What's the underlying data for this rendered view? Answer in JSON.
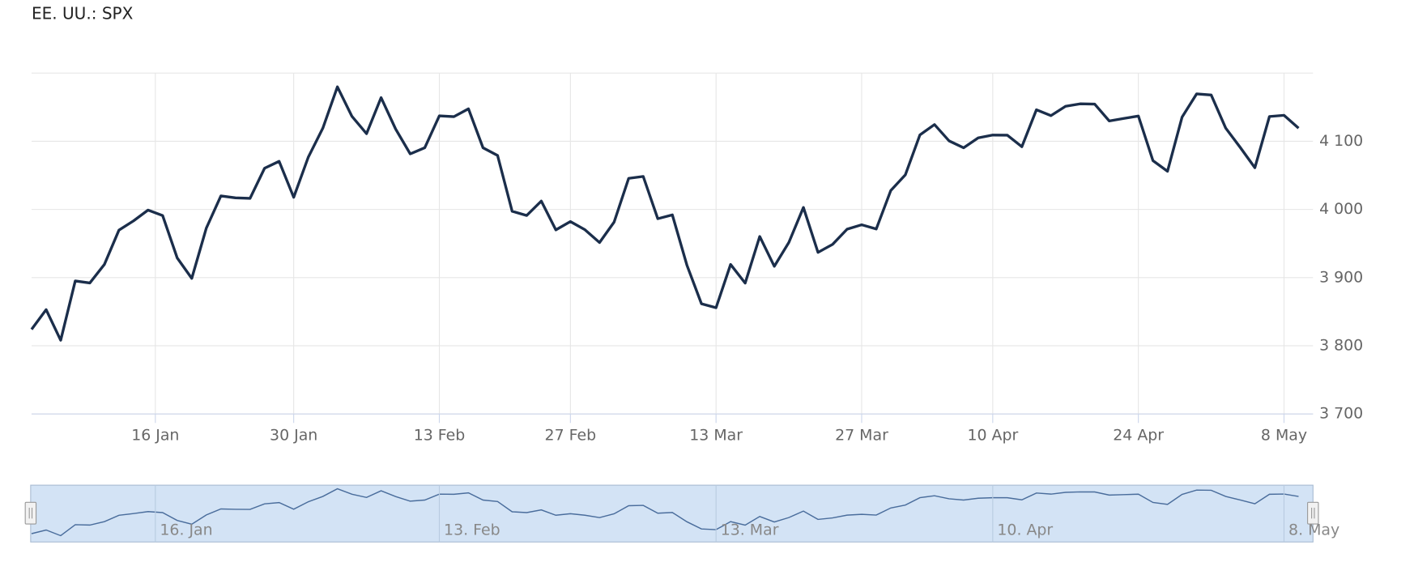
{
  "chart_data": {
    "type": "line",
    "title": "EE. UU.: SPX",
    "x": [
      "3 Jan",
      "4 Jan",
      "5 Jan",
      "6 Jan",
      "9 Jan",
      "10 Jan",
      "11 Jan",
      "12 Jan",
      "13 Jan",
      "17 Jan",
      "18 Jan",
      "19 Jan",
      "20 Jan",
      "23 Jan",
      "24 Jan",
      "25 Jan",
      "26 Jan",
      "27 Jan",
      "30 Jan",
      "31 Jan",
      "1 Feb",
      "2 Feb",
      "3 Feb",
      "6 Feb",
      "7 Feb",
      "8 Feb",
      "9 Feb",
      "10 Feb",
      "13 Feb",
      "14 Feb",
      "15 Feb",
      "16 Feb",
      "17 Feb",
      "21 Feb",
      "22 Feb",
      "23 Feb",
      "24 Feb",
      "27 Feb",
      "28 Feb",
      "1 Mar",
      "2 Mar",
      "3 Mar",
      "6 Mar",
      "7 Mar",
      "8 Mar",
      "9 Mar",
      "10 Mar",
      "13 Mar",
      "14 Mar",
      "15 Mar",
      "16 Mar",
      "17 Mar",
      "20 Mar",
      "21 Mar",
      "22 Mar",
      "23 Mar",
      "24 Mar",
      "27 Mar",
      "28 Mar",
      "29 Mar",
      "30 Mar",
      "31 Mar",
      "3 Apr",
      "4 Apr",
      "5 Apr",
      "6 Apr",
      "10 Apr",
      "11 Apr",
      "12 Apr",
      "13 Apr",
      "14 Apr",
      "17 Apr",
      "18 Apr",
      "19 Apr",
      "20 Apr",
      "21 Apr",
      "24 Apr",
      "25 Apr",
      "26 Apr",
      "27 Apr",
      "28 Apr",
      "1 May",
      "2 May",
      "3 May",
      "4 May",
      "5 May",
      "8 May",
      "9 May"
    ],
    "values": [
      3824.1,
      3853.0,
      3808.1,
      3895.1,
      3892.1,
      3919.3,
      3969.6,
      3983.2,
      3999.1,
      3991.0,
      3928.9,
      3898.9,
      3972.6,
      4019.8,
      4017.0,
      4016.2,
      4060.4,
      4070.6,
      4017.8,
      4076.6,
      4119.2,
      4179.8,
      4136.5,
      4111.1,
      4164.0,
      4117.9,
      4081.5,
      4090.5,
      4137.3,
      4136.1,
      4147.6,
      4090.4,
      4079.1,
      3997.3,
      3991.1,
      4012.3,
      3970.0,
      3982.2,
      3970.2,
      3951.4,
      3981.4,
      4045.6,
      4048.4,
      3986.4,
      3992.0,
      3918.3,
      3861.6,
      3855.8,
      3919.3,
      3891.9,
      3960.3,
      3916.6,
      3951.6,
      4002.9,
      3937.0,
      3948.7,
      3971.0,
      3977.5,
      3971.3,
      4027.8,
      4050.8,
      4109.3,
      4124.5,
      4100.6,
      4090.4,
      4105.0,
      4109.1,
      4108.9,
      4092.0,
      4146.2,
      4137.6,
      4151.3,
      4154.9,
      4154.5,
      4129.8,
      4133.5,
      4137.0,
      4071.6,
      4056.0,
      4135.4,
      4169.5,
      4167.9,
      4119.2,
      4090.8,
      4061.2,
      4136.3,
      4138.1,
      4119.2
    ],
    "color": "#1b2e4b",
    "ylim": [
      3700,
      4200
    ],
    "yticks": [
      {
        "value": 3700,
        "label": "3 700"
      },
      {
        "value": 3800,
        "label": "3 800"
      },
      {
        "value": 3900,
        "label": "3 900"
      },
      {
        "value": 4000,
        "label": "4 000"
      },
      {
        "value": 4100,
        "label": "4 100"
      }
    ],
    "xticks": [
      "16 Jan",
      "30 Jan",
      "13 Feb",
      "27 Feb",
      "13 Mar",
      "27 Mar",
      "10 Apr",
      "24 Apr",
      "8 May"
    ],
    "grid": true,
    "navigator_xticks": [
      "16. Jan",
      "13. Feb",
      "13. Mar",
      "10. Apr",
      "8. May"
    ]
  }
}
